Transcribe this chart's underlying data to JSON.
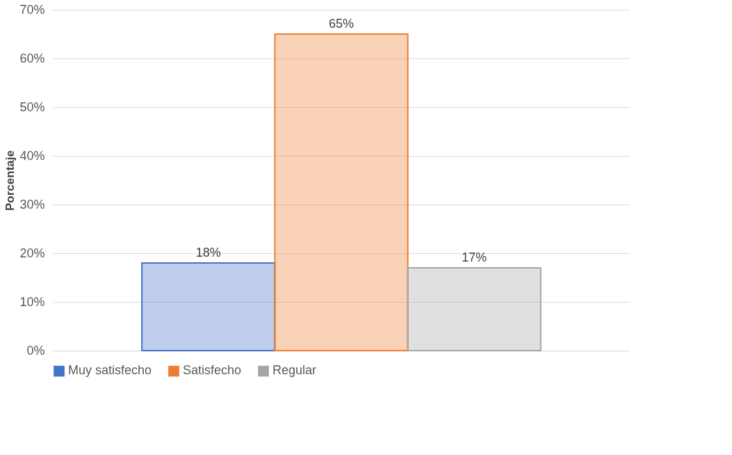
{
  "chart_data": {
    "type": "bar",
    "ylabel": "Porcentaje",
    "categories": [
      null,
      null,
      null
    ],
    "series": [
      {
        "name": "Muy satisfecho",
        "color": "#4472c4",
        "values": [
          18,
          null,
          null
        ],
        "value_labels": [
          "18%",
          null,
          null
        ]
      },
      {
        "name": "Satisfecho",
        "color": "#ed7d31",
        "values": [
          null,
          65,
          null
        ],
        "value_labels": [
          null,
          "65%",
          null
        ]
      },
      {
        "name": "Regular",
        "color": "#a5a5a5",
        "values": [
          null,
          null,
          17
        ],
        "value_labels": [
          null,
          null,
          "17%"
        ]
      }
    ],
    "ylim": [
      0,
      70
    ],
    "yticks": [
      {
        "value": 0,
        "label": "0%"
      },
      {
        "value": 10,
        "label": "10%"
      },
      {
        "value": 20,
        "label": "20%"
      },
      {
        "value": 30,
        "label": "30%"
      },
      {
        "value": 40,
        "label": "40%"
      },
      {
        "value": 50,
        "label": "50%"
      },
      {
        "value": 60,
        "label": "60%"
      },
      {
        "value": 70,
        "label": "70%"
      }
    ],
    "grid": "y",
    "legend": "bottom"
  }
}
